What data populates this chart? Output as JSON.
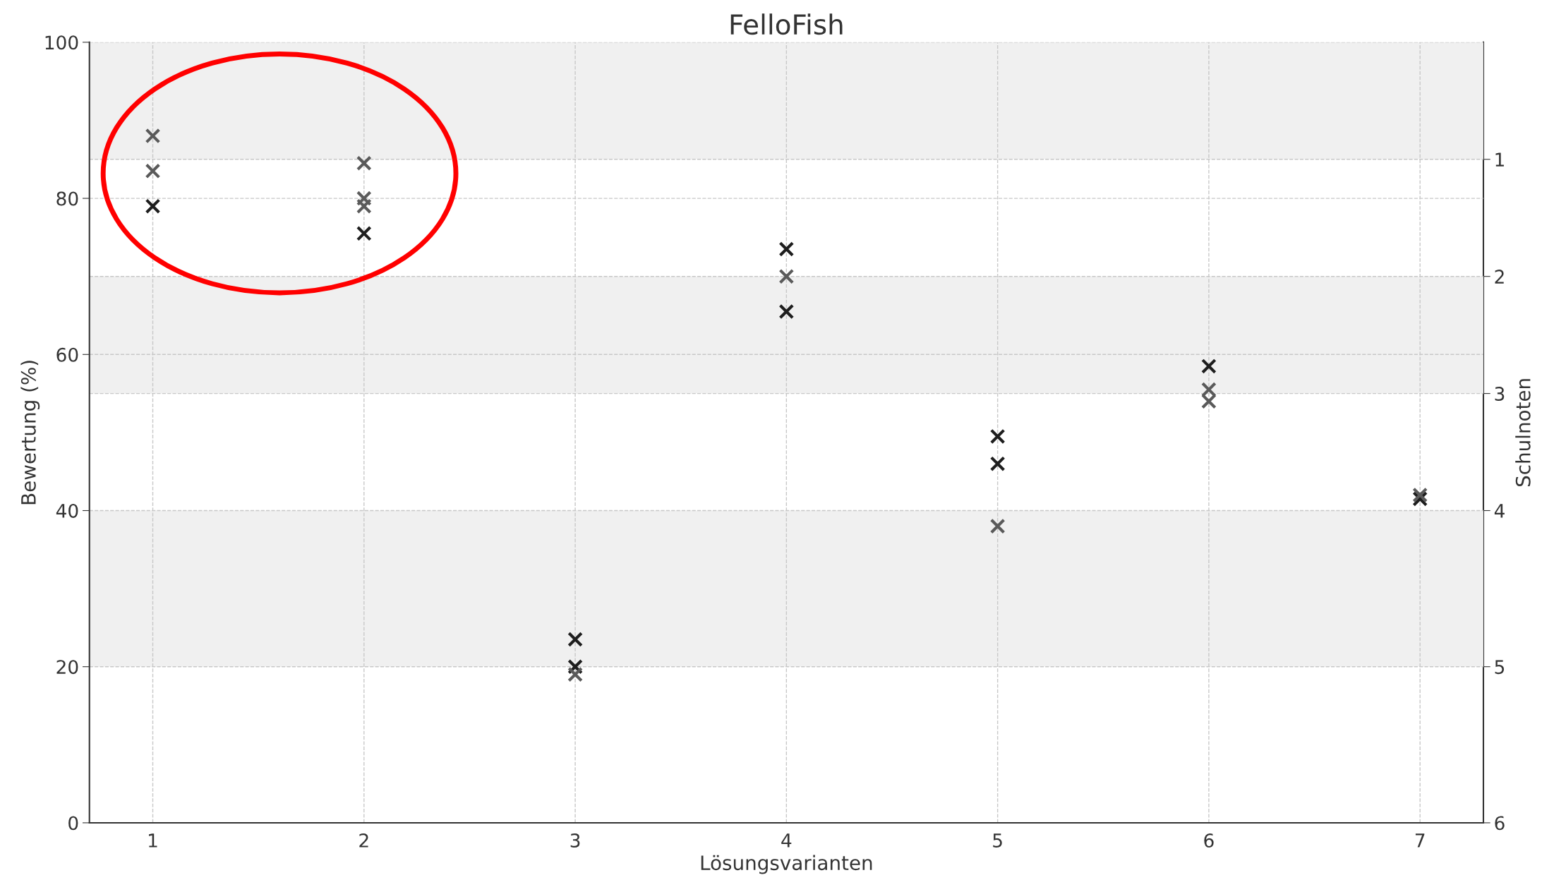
{
  "chart_data": {
    "type": "scatter",
    "title": "FelloFish",
    "xlabel": "Lösungsvarianten",
    "ylabel": "Bewertung (%)",
    "y2label": "Schulnoten",
    "xlim": [
      0.7,
      7.3
    ],
    "xticks": [
      1,
      2,
      3,
      4,
      5,
      6,
      7
    ],
    "ylim": [
      0,
      100
    ],
    "yticks": [
      0,
      20,
      40,
      60,
      80,
      100
    ],
    "ref_lines": [
      {
        "axis": "y",
        "value": 85,
        "line_style": "dashed"
      },
      {
        "axis": "y",
        "value": 70,
        "line_style": "dashed"
      },
      {
        "axis": "y",
        "value": 55,
        "line_style": "dashed"
      },
      {
        "axis": "y",
        "value": 40,
        "line_style": "dashed"
      },
      {
        "axis": "y",
        "value": 20,
        "line_style": "dashed"
      }
    ],
    "annotations": [
      "1",
      "2",
      "3",
      "4",
      "5",
      "6"
    ],
    "marker": "cross",
    "grid": true,
    "bands": [
      {
        "axis": "y",
        "from": 85,
        "to": 100,
        "color": "#f0f0f0"
      },
      {
        "axis": "y",
        "from": 55,
        "to": 70,
        "color": "#f0f0f0"
      },
      {
        "axis": "y",
        "from": 20,
        "to": 40,
        "color": "#f0f0f0"
      }
    ],
    "series": [
      {
        "color": "#1e1e1e",
        "x": [
          1,
          2,
          3,
          3,
          4,
          4,
          5,
          5,
          6,
          7
        ],
        "values": [
          79,
          75.5,
          23.5,
          20,
          73.5,
          65.5,
          49.5,
          46,
          58.5,
          41.5
        ]
      },
      {
        "color": "#5a5a5a",
        "x": [
          1,
          1,
          2,
          2,
          2,
          3,
          4,
          5,
          6,
          6,
          7
        ],
        "values": [
          88,
          83.5,
          84.5,
          80,
          79,
          19,
          70,
          38,
          55.5,
          54,
          42
        ]
      }
    ]
  }
}
